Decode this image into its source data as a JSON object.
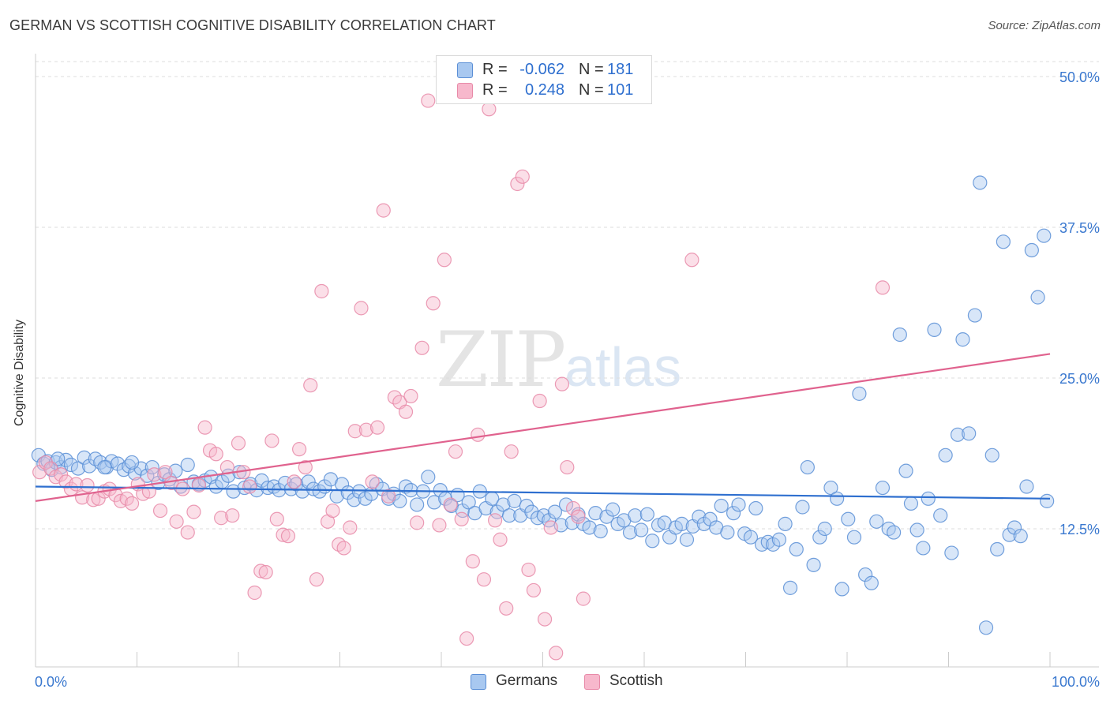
{
  "header": {
    "title": "GERMAN VS SCOTTISH COGNITIVE DISABILITY CORRELATION CHART",
    "source": "Source: ZipAtlas.com"
  },
  "legend": {
    "german": {
      "r_label": "R =",
      "r_value": "-0.062",
      "n_label": "N =",
      "n_value": "181"
    },
    "scottish": {
      "r_label": "R =",
      "r_value": "0.248",
      "n_label": "N =",
      "n_value": "101"
    }
  },
  "bottom_legend": {
    "german": "Germans",
    "scottish": "Scottish"
  },
  "watermark": {
    "zip": "ZIP",
    "atlas": "atlas"
  },
  "colors": {
    "german_fill": "#a8c8f0",
    "german_stroke": "#5b8fd6",
    "german_line": "#2e6fcf",
    "scottish_fill": "#f7b8cc",
    "scottish_stroke": "#e88aa8",
    "scottish_line": "#e0628e",
    "axis_text": "#3a78cf",
    "grid": "#dddddd"
  },
  "chart_data": {
    "type": "scatter",
    "title": "GERMAN VS SCOTTISH COGNITIVE DISABILITY CORRELATION CHART",
    "xlabel": "",
    "ylabel": "Cognitive Disability",
    "xlim": [
      0,
      100
    ],
    "ylim": [
      0,
      50
    ],
    "x_tick_labels": [
      "0.0%",
      "100.0%"
    ],
    "y_ticks": [
      12.5,
      25.0,
      37.5,
      50.0
    ],
    "y_tick_labels": [
      "12.5%",
      "25.0%",
      "37.5%",
      "50.0%"
    ],
    "grid": "horizontal dashed",
    "series": [
      {
        "name": "Germans",
        "r": -0.062,
        "n": 181,
        "trend": {
          "x": [
            0,
            100
          ],
          "y": [
            16.0,
            15.0
          ]
        },
        "points": [
          [
            0.3,
            18.6
          ],
          [
            0.8,
            17.9
          ],
          [
            1.2,
            18.1
          ],
          [
            1.6,
            17.4
          ],
          [
            2.0,
            18.0
          ],
          [
            2.5,
            17.6
          ],
          [
            3.0,
            18.2
          ],
          [
            3.5,
            17.8
          ],
          [
            4.2,
            17.5
          ],
          [
            4.8,
            18.4
          ],
          [
            5.3,
            17.7
          ],
          [
            5.9,
            18.3
          ],
          [
            6.4,
            18.0
          ],
          [
            7.0,
            17.6
          ],
          [
            7.5,
            18.1
          ],
          [
            8.1,
            17.9
          ],
          [
            8.7,
            17.4
          ],
          [
            9.2,
            17.7
          ],
          [
            9.8,
            17.1
          ],
          [
            10.4,
            17.5
          ],
          [
            11.0,
            16.9
          ],
          [
            11.5,
            17.6
          ],
          [
            12.1,
            16.3
          ],
          [
            12.7,
            17.0
          ],
          [
            13.2,
            16.6
          ],
          [
            13.8,
            17.3
          ],
          [
            14.3,
            16.0
          ],
          [
            15.0,
            17.8
          ],
          [
            15.6,
            16.4
          ],
          [
            16.1,
            16.2
          ],
          [
            16.7,
            16.5
          ],
          [
            17.3,
            16.8
          ],
          [
            17.8,
            16.0
          ],
          [
            18.4,
            16.4
          ],
          [
            19.0,
            16.9
          ],
          [
            19.5,
            15.6
          ],
          [
            20.1,
            17.2
          ],
          [
            20.6,
            15.9
          ],
          [
            21.2,
            16.2
          ],
          [
            21.8,
            15.7
          ],
          [
            22.3,
            16.5
          ],
          [
            22.9,
            15.9
          ],
          [
            23.5,
            16.0
          ],
          [
            24.0,
            15.7
          ],
          [
            24.6,
            16.3
          ],
          [
            25.2,
            15.8
          ],
          [
            25.7,
            16.2
          ],
          [
            26.3,
            15.6
          ],
          [
            26.9,
            16.4
          ],
          [
            27.4,
            15.8
          ],
          [
            28.0,
            15.6
          ],
          [
            28.5,
            16.0
          ],
          [
            29.1,
            16.6
          ],
          [
            29.7,
            15.2
          ],
          [
            30.2,
            16.2
          ],
          [
            30.8,
            15.5
          ],
          [
            31.4,
            14.9
          ],
          [
            31.9,
            15.6
          ],
          [
            32.5,
            15.0
          ],
          [
            33.1,
            15.4
          ],
          [
            33.6,
            16.2
          ],
          [
            34.2,
            15.8
          ],
          [
            34.8,
            15.0
          ],
          [
            35.3,
            15.4
          ],
          [
            35.9,
            14.8
          ],
          [
            36.5,
            16.0
          ],
          [
            37.0,
            15.7
          ],
          [
            37.6,
            14.5
          ],
          [
            38.2,
            15.6
          ],
          [
            38.7,
            16.8
          ],
          [
            39.3,
            14.7
          ],
          [
            39.9,
            15.7
          ],
          [
            40.4,
            15.0
          ],
          [
            41.0,
            14.4
          ],
          [
            41.6,
            15.3
          ],
          [
            42.1,
            14.0
          ],
          [
            42.7,
            14.7
          ],
          [
            43.3,
            13.8
          ],
          [
            43.8,
            15.6
          ],
          [
            44.4,
            14.2
          ],
          [
            45.0,
            15.0
          ],
          [
            45.5,
            13.9
          ],
          [
            46.1,
            14.5
          ],
          [
            46.7,
            13.6
          ],
          [
            47.2,
            14.8
          ],
          [
            47.8,
            13.6
          ],
          [
            48.4,
            14.4
          ],
          [
            48.9,
            13.9
          ],
          [
            49.5,
            13.4
          ],
          [
            50.1,
            13.6
          ],
          [
            50.6,
            13.2
          ],
          [
            51.2,
            13.9
          ],
          [
            51.8,
            12.8
          ],
          [
            52.3,
            14.5
          ],
          [
            52.9,
            13.0
          ],
          [
            53.5,
            13.7
          ],
          [
            54.0,
            12.9
          ],
          [
            54.6,
            12.6
          ],
          [
            55.2,
            13.8
          ],
          [
            55.7,
            12.3
          ],
          [
            56.3,
            13.5
          ],
          [
            56.9,
            14.1
          ],
          [
            57.4,
            12.9
          ],
          [
            58.0,
            13.2
          ],
          [
            58.6,
            12.2
          ],
          [
            59.1,
            13.6
          ],
          [
            59.7,
            12.4
          ],
          [
            60.3,
            13.7
          ],
          [
            60.8,
            11.5
          ],
          [
            61.4,
            12.8
          ],
          [
            62.0,
            13.0
          ],
          [
            62.5,
            11.8
          ],
          [
            63.1,
            12.6
          ],
          [
            63.7,
            12.9
          ],
          [
            64.2,
            11.6
          ],
          [
            64.8,
            12.7
          ],
          [
            65.4,
            13.5
          ],
          [
            65.9,
            12.9
          ],
          [
            66.5,
            13.3
          ],
          [
            67.1,
            12.6
          ],
          [
            67.6,
            14.4
          ],
          [
            68.2,
            12.2
          ],
          [
            68.8,
            13.8
          ],
          [
            69.3,
            14.5
          ],
          [
            69.9,
            12.1
          ],
          [
            70.5,
            11.8
          ],
          [
            71.0,
            14.2
          ],
          [
            71.6,
            11.2
          ],
          [
            72.2,
            11.4
          ],
          [
            72.7,
            11.2
          ],
          [
            73.3,
            11.6
          ],
          [
            73.9,
            12.9
          ],
          [
            74.4,
            7.6
          ],
          [
            75.0,
            10.8
          ],
          [
            75.6,
            14.3
          ],
          [
            76.1,
            17.6
          ],
          [
            76.7,
            9.5
          ],
          [
            77.3,
            11.8
          ],
          [
            77.8,
            12.5
          ],
          [
            78.4,
            15.9
          ],
          [
            79.0,
            15.0
          ],
          [
            79.5,
            7.5
          ],
          [
            80.1,
            13.3
          ],
          [
            80.7,
            11.8
          ],
          [
            81.2,
            23.7
          ],
          [
            81.8,
            8.7
          ],
          [
            82.4,
            8.0
          ],
          [
            82.9,
            13.1
          ],
          [
            83.5,
            15.9
          ],
          [
            84.1,
            12.5
          ],
          [
            84.6,
            12.2
          ],
          [
            85.2,
            28.6
          ],
          [
            85.8,
            17.3
          ],
          [
            86.3,
            14.6
          ],
          [
            86.9,
            12.4
          ],
          [
            87.5,
            10.9
          ],
          [
            88.0,
            15.0
          ],
          [
            88.6,
            29.0
          ],
          [
            89.2,
            13.6
          ],
          [
            89.7,
            18.6
          ],
          [
            90.3,
            10.5
          ],
          [
            90.9,
            20.3
          ],
          [
            91.4,
            28.2
          ],
          [
            92.0,
            20.4
          ],
          [
            92.6,
            30.2
          ],
          [
            93.1,
            41.2
          ],
          [
            93.7,
            4.3
          ],
          [
            94.3,
            18.6
          ],
          [
            94.8,
            10.8
          ],
          [
            95.4,
            36.3
          ],
          [
            96.0,
            12.0
          ],
          [
            96.5,
            12.6
          ],
          [
            97.1,
            11.9
          ],
          [
            97.7,
            16.0
          ],
          [
            98.2,
            35.6
          ],
          [
            98.8,
            31.7
          ],
          [
            99.4,
            36.8
          ],
          [
            99.7,
            14.8
          ],
          [
            2.2,
            18.3
          ],
          [
            6.8,
            17.6
          ],
          [
            9.5,
            18.0
          ]
        ]
      },
      {
        "name": "Scottish",
        "r": 0.248,
        "n": 101,
        "trend": {
          "x": [
            0,
            100
          ],
          "y": [
            14.8,
            27.0
          ]
        },
        "points": [
          [
            0.4,
            17.2
          ],
          [
            1.0,
            18.0
          ],
          [
            1.5,
            17.5
          ],
          [
            2.0,
            16.8
          ],
          [
            2.5,
            17.0
          ],
          [
            3.0,
            16.4
          ],
          [
            3.5,
            15.8
          ],
          [
            4.0,
            16.2
          ],
          [
            4.6,
            15.1
          ],
          [
            5.1,
            16.1
          ],
          [
            5.7,
            14.9
          ],
          [
            6.2,
            15.0
          ],
          [
            6.8,
            15.6
          ],
          [
            7.3,
            15.8
          ],
          [
            7.9,
            15.3
          ],
          [
            8.4,
            14.8
          ],
          [
            9.0,
            15.0
          ],
          [
            9.5,
            14.6
          ],
          [
            10.1,
            16.2
          ],
          [
            10.6,
            15.4
          ],
          [
            11.2,
            15.6
          ],
          [
            11.7,
            17.0
          ],
          [
            12.3,
            14.0
          ],
          [
            12.8,
            17.2
          ],
          [
            13.4,
            16.3
          ],
          [
            13.9,
            13.1
          ],
          [
            14.5,
            15.8
          ],
          [
            15.0,
            12.2
          ],
          [
            15.6,
            13.9
          ],
          [
            16.1,
            16.1
          ],
          [
            16.7,
            20.9
          ],
          [
            17.2,
            19.0
          ],
          [
            17.8,
            18.7
          ],
          [
            18.3,
            13.4
          ],
          [
            18.9,
            17.6
          ],
          [
            19.4,
            13.6
          ],
          [
            20.0,
            19.6
          ],
          [
            20.5,
            17.2
          ],
          [
            21.1,
            16.0
          ],
          [
            21.6,
            7.2
          ],
          [
            22.2,
            9.0
          ],
          [
            22.7,
            8.9
          ],
          [
            23.3,
            19.8
          ],
          [
            23.8,
            13.3
          ],
          [
            24.4,
            12.0
          ],
          [
            24.9,
            11.9
          ],
          [
            25.5,
            16.4
          ],
          [
            26.0,
            19.1
          ],
          [
            26.6,
            17.6
          ],
          [
            27.1,
            24.4
          ],
          [
            27.7,
            8.3
          ],
          [
            28.2,
            32.2
          ],
          [
            28.8,
            13.1
          ],
          [
            29.3,
            14.0
          ],
          [
            29.9,
            11.2
          ],
          [
            30.4,
            10.9
          ],
          [
            31.0,
            12.6
          ],
          [
            31.5,
            20.6
          ],
          [
            32.1,
            30.8
          ],
          [
            32.6,
            20.7
          ],
          [
            33.2,
            16.4
          ],
          [
            33.7,
            20.9
          ],
          [
            34.3,
            38.9
          ],
          [
            34.8,
            15.2
          ],
          [
            35.4,
            23.4
          ],
          [
            35.9,
            23.0
          ],
          [
            36.5,
            22.2
          ],
          [
            37.0,
            23.5
          ],
          [
            37.6,
            13.0
          ],
          [
            38.1,
            27.5
          ],
          [
            38.7,
            48.0
          ],
          [
            39.2,
            31.2
          ],
          [
            39.8,
            12.8
          ],
          [
            40.3,
            34.8
          ],
          [
            40.9,
            14.5
          ],
          [
            41.4,
            18.9
          ],
          [
            42.0,
            13.3
          ],
          [
            42.5,
            3.4
          ],
          [
            43.1,
            9.8
          ],
          [
            43.6,
            20.3
          ],
          [
            44.2,
            8.3
          ],
          [
            44.7,
            47.3
          ],
          [
            45.3,
            13.2
          ],
          [
            45.8,
            11.6
          ],
          [
            46.4,
            5.9
          ],
          [
            46.9,
            18.9
          ],
          [
            47.5,
            41.1
          ],
          [
            48.0,
            41.7
          ],
          [
            48.6,
            9.1
          ],
          [
            49.1,
            7.4
          ],
          [
            49.7,
            23.1
          ],
          [
            50.2,
            5.0
          ],
          [
            50.8,
            12.6
          ],
          [
            51.3,
            2.2
          ],
          [
            51.9,
            24.5
          ],
          [
            52.4,
            17.6
          ],
          [
            53.0,
            14.2
          ],
          [
            53.5,
            13.5
          ],
          [
            54.0,
            6.7
          ],
          [
            64.7,
            34.8
          ],
          [
            83.5,
            32.5
          ]
        ]
      }
    ]
  }
}
